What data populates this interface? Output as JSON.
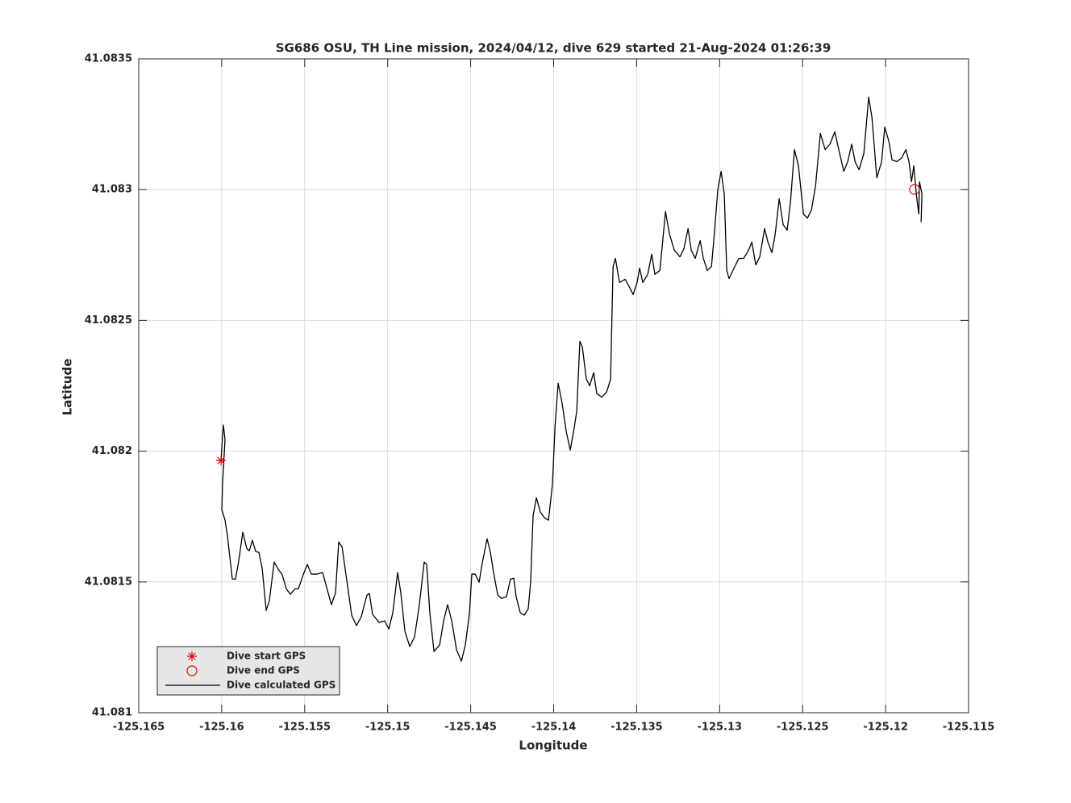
{
  "chart_data": {
    "type": "line",
    "title": "SG686 OSU, TH Line mission, 2024/04/12, dive 629 started 21-Aug-2024 01:26:39",
    "x_label": "Longitude",
    "y_label": "Latitude",
    "xlim": [
      -125.165,
      -125.115
    ],
    "ylim": [
      41.081,
      41.0835
    ],
    "xticks": [
      -125.165,
      -125.16,
      -125.155,
      -125.15,
      -125.145,
      -125.14,
      -125.135,
      -125.13,
      -125.125,
      -125.12,
      -125.115
    ],
    "yticks": [
      41.081,
      41.0815,
      41.082,
      41.0825,
      41.083,
      41.0835
    ],
    "grid": true,
    "legend": "lower left",
    "series": [
      {
        "name": "Dive start GPS",
        "color": "#e00000",
        "marker": "asterisk",
        "x": [
          -125.16004
        ],
        "values": [
          41.081964
        ]
      },
      {
        "name": "Dive end GPS",
        "color": "#e00000",
        "marker": "circle",
        "x": [
          -125.11826
        ],
        "values": [
          41.083001
        ]
      },
      {
        "name": "Dive calculated GPS",
        "color": "#000000",
        "x": [
          -125.16004,
          -125.15995,
          -125.1599,
          -125.1598,
          -125.15995,
          -125.15999,
          -125.1598,
          -125.15965,
          -125.15946,
          -125.15936,
          -125.15917,
          -125.15897,
          -125.15873,
          -125.15849,
          -125.15834,
          -125.15815,
          -125.15795,
          -125.15776,
          -125.15756,
          -125.15732,
          -125.15713,
          -125.15684,
          -125.15659,
          -125.15635,
          -125.15611,
          -125.15586,
          -125.15557,
          -125.15538,
          -125.15509,
          -125.15484,
          -125.1546,
          -125.15426,
          -125.15392,
          -125.15368,
          -125.15339,
          -125.15314,
          -125.15295,
          -125.15275,
          -125.15246,
          -125.15217,
          -125.15188,
          -125.15159,
          -125.15125,
          -125.1511,
          -125.15091,
          -125.15052,
          -125.15018,
          -125.14993,
          -125.14969,
          -125.1494,
          -125.14921,
          -125.14896,
          -125.14867,
          -125.14838,
          -125.14809,
          -125.1478,
          -125.14765,
          -125.14746,
          -125.14721,
          -125.14687,
          -125.14663,
          -125.14639,
          -125.14614,
          -125.14585,
          -125.14556,
          -125.14532,
          -125.14507,
          -125.14493,
          -125.14473,
          -125.14449,
          -125.1443,
          -125.14401,
          -125.14381,
          -125.14362,
          -125.14337,
          -125.14313,
          -125.14284,
          -125.1426,
          -125.1424,
          -125.14226,
          -125.14201,
          -125.14177,
          -125.14153,
          -125.14138,
          -125.14124,
          -125.14104,
          -125.1408,
          -125.14055,
          -125.14031,
          -125.14007,
          -125.13992,
          -125.13973,
          -125.13949,
          -125.13924,
          -125.139,
          -125.13876,
          -125.13861,
          -125.13842,
          -125.13827,
          -125.13803,
          -125.13783,
          -125.13759,
          -125.1374,
          -125.1371,
          -125.13681,
          -125.13657,
          -125.13642,
          -125.13628,
          -125.13603,
          -125.13569,
          -125.13545,
          -125.13521,
          -125.13497,
          -125.13482,
          -125.13463,
          -125.13433,
          -125.13409,
          -125.1339,
          -125.1336,
          -125.13326,
          -125.13302,
          -125.13273,
          -125.13239,
          -125.13215,
          -125.1319,
          -125.13171,
          -125.13147,
          -125.13117,
          -125.13098,
          -125.13074,
          -125.13049,
          -125.1303,
          -125.13011,
          -125.12991,
          -125.12972,
          -125.12957,
          -125.12943,
          -125.12913,
          -125.12884,
          -125.12855,
          -125.12826,
          -125.12806,
          -125.12782,
          -125.12758,
          -125.12729,
          -125.12709,
          -125.12685,
          -125.12665,
          -125.12641,
          -125.12617,
          -125.12593,
          -125.12573,
          -125.12549,
          -125.12525,
          -125.12495,
          -125.12471,
          -125.12447,
          -125.12422,
          -125.12393,
          -125.12364,
          -125.12335,
          -125.12306,
          -125.12282,
          -125.12252,
          -125.12228,
          -125.12204,
          -125.12184,
          -125.1216,
          -125.12131,
          -125.12102,
          -125.12082,
          -125.12053,
          -125.12024,
          -125.12005,
          -125.1198,
          -125.11961,
          -125.11932,
          -125.11902,
          -125.11878,
          -125.11859,
          -125.11844,
          -125.1183,
          -125.11815,
          -125.118,
          -125.11796,
          -125.11781,
          -125.11786
        ],
        "values": [
          41.081964,
          41.08206,
          41.0821,
          41.082044,
          41.081875,
          41.081776,
          41.081736,
          41.081675,
          41.081567,
          41.081511,
          41.081511,
          41.081582,
          41.08169,
          41.081628,
          41.081619,
          41.081659,
          41.081616,
          41.081613,
          41.081551,
          41.081391,
          41.081428,
          41.081576,
          41.081548,
          41.081527,
          41.081474,
          41.081453,
          41.081474,
          41.081474,
          41.081527,
          41.081567,
          41.08153,
          41.08153,
          41.081536,
          41.08148,
          41.081413,
          41.081459,
          41.081653,
          41.081634,
          41.081505,
          41.081373,
          41.081333,
          41.081367,
          41.08145,
          41.081456,
          41.081376,
          41.081345,
          41.081351,
          41.08132,
          41.081382,
          41.081536,
          41.081459,
          41.081311,
          41.081253,
          41.08129,
          41.081413,
          41.081576,
          41.081567,
          41.081382,
          41.081234,
          41.081259,
          41.081351,
          41.081413,
          41.081351,
          41.08124,
          41.081197,
          41.081259,
          41.081382,
          41.08153,
          41.08153,
          41.081499,
          41.081573,
          41.081665,
          41.081613,
          41.081536,
          41.08145,
          41.081437,
          41.081444,
          41.081511,
          41.081514,
          41.081444,
          41.081382,
          41.081373,
          41.081397,
          41.081505,
          41.081752,
          41.081822,
          41.081767,
          41.081745,
          41.081736,
          41.081875,
          41.08209,
          41.08226,
          41.082183,
          41.082075,
          41.082004,
          41.08209,
          41.082152,
          41.08242,
          41.082398,
          41.082275,
          41.08225,
          41.0823,
          41.08222,
          41.082207,
          41.082226,
          41.082275,
          41.082706,
          41.082737,
          41.082645,
          41.082657,
          41.082629,
          41.082599,
          41.082645,
          41.0827,
          41.082645,
          41.082676,
          41.082753,
          41.082676,
          41.082691,
          41.082916,
          41.08283,
          41.082768,
          41.082743,
          41.082774,
          41.082851,
          41.082768,
          41.082737,
          41.082805,
          41.082737,
          41.082691,
          41.082706,
          41.082845,
          41.082999,
          41.08307,
          41.082984,
          41.082691,
          41.08266,
          41.0827,
          41.082737,
          41.082737,
          41.082768,
          41.082799,
          41.082712,
          41.082743,
          41.082851,
          41.082799,
          41.082759,
          41.08283,
          41.082965,
          41.082866,
          41.082845,
          41.082953,
          41.083153,
          41.083091,
          41.082907,
          41.082891,
          41.082922,
          41.083014,
          41.083215,
          41.083153,
          41.083174,
          41.083221,
          41.083153,
          41.08307,
          41.083107,
          41.083174,
          41.083107,
          41.083076,
          41.083138,
          41.083353,
          41.083276,
          41.083045,
          41.083107,
          41.083239,
          41.083184,
          41.083113,
          41.083107,
          41.083122,
          41.083153,
          41.083107,
          41.08303,
          41.083091,
          41.082984,
          41.082907,
          41.08303,
          41.082984,
          41.082876
        ]
      }
    ]
  }
}
